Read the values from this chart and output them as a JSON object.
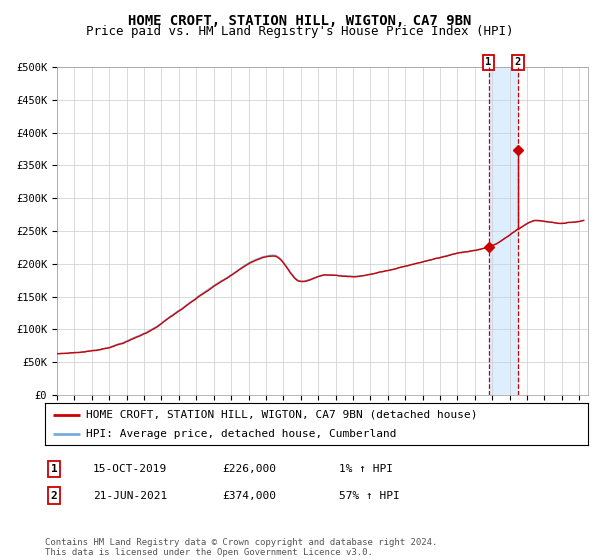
{
  "title": "HOME CROFT, STATION HILL, WIGTON, CA7 9BN",
  "subtitle": "Price paid vs. HM Land Registry's House Price Index (HPI)",
  "ylim": [
    0,
    500000
  ],
  "yticks": [
    0,
    50000,
    100000,
    150000,
    200000,
    250000,
    300000,
    350000,
    400000,
    450000,
    500000
  ],
  "ytick_labels": [
    "£0",
    "£50K",
    "£100K",
    "£150K",
    "£200K",
    "£250K",
    "£300K",
    "£350K",
    "£400K",
    "£450K",
    "£500K"
  ],
  "xlim_start": 1995.0,
  "xlim_end": 2025.5,
  "hpi_color": "#7aaadd",
  "price_color": "#cc0000",
  "marker_color": "#cc0000",
  "dashed_line_color": "#cc0000",
  "shade_color": "#ddeeff",
  "transaction1_x": 2019.79,
  "transaction1_y": 226000,
  "transaction2_x": 2021.47,
  "transaction2_y": 374000,
  "legend_label1": "HOME CROFT, STATION HILL, WIGTON, CA7 9BN (detached house)",
  "legend_label2": "HPI: Average price, detached house, Cumberland",
  "table_row1_num": "1",
  "table_row1_date": "15-OCT-2019",
  "table_row1_price": "£226,000",
  "table_row1_hpi": "1% ↑ HPI",
  "table_row2_num": "2",
  "table_row2_date": "21-JUN-2021",
  "table_row2_price": "£374,000",
  "table_row2_hpi": "57% ↑ HPI",
  "footer": "Contains HM Land Registry data © Crown copyright and database right 2024.\nThis data is licensed under the Open Government Licence v3.0.",
  "title_fontsize": 10,
  "subtitle_fontsize": 9,
  "tick_fontsize": 7.5,
  "legend_fontsize": 8,
  "table_fontsize": 8,
  "footer_fontsize": 6.5,
  "hpi_keypoints_x": [
    1995.0,
    1997.0,
    2000.0,
    2002.0,
    2004.5,
    2007.5,
    2009.0,
    2010.5,
    2012.0,
    2014.0,
    2016.0,
    2018.0,
    2020.0,
    2021.5,
    2022.5,
    2024.0,
    2025.0
  ],
  "hpi_keypoints_y": [
    63000,
    68000,
    95000,
    130000,
    175000,
    215000,
    175000,
    185000,
    183000,
    192000,
    205000,
    218000,
    230000,
    255000,
    268000,
    265000,
    268000
  ]
}
